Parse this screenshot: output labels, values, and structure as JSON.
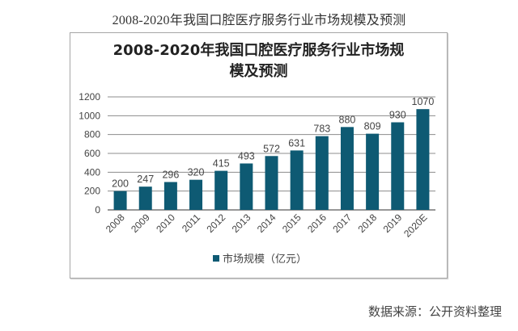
{
  "page": {
    "caption": "2008-2020年我国口腔医疗服务行业市场规模及预测",
    "source": "数据来源：公开资料整理"
  },
  "chart_data": {
    "type": "bar",
    "title_lines": [
      "2008-2020年我国口腔医疗服务行业市场规",
      "模及预测"
    ],
    "categories": [
      "2008",
      "2009",
      "2010",
      "2011",
      "2012",
      "2013",
      "2014",
      "2015",
      "2016",
      "2017",
      "2018",
      "2019",
      "2020E"
    ],
    "series": [
      {
        "name": "市场规模（亿元）",
        "values": [
          200,
          247,
          296,
          320,
          415,
          493,
          572,
          631,
          783,
          880,
          809,
          930,
          1070
        ],
        "color": "#0e5a73"
      }
    ],
    "xlabel": "",
    "ylabel": "",
    "ylim": [
      0,
      1200
    ],
    "yticks": [
      0,
      200,
      400,
      600,
      800,
      1000,
      1200
    ],
    "grid": true,
    "legend": "bottom",
    "data_labels": true
  }
}
